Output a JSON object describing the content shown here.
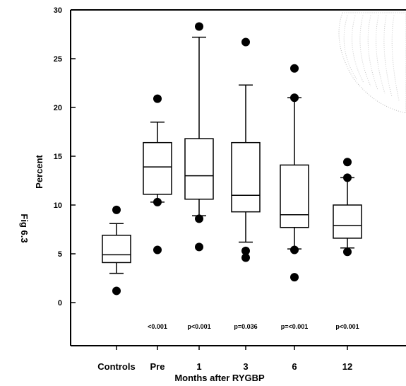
{
  "chart_data": {
    "type": "box",
    "title": "",
    "xlabel": "Months after RYGBP",
    "ylabel": "Percent",
    "side_label": "Fig 6.3",
    "ylim": [
      -5,
      30
    ],
    "yticks": [
      "0",
      "5",
      "10",
      "15",
      "20",
      "25",
      "30"
    ],
    "categories": [
      "Controls",
      "Pre",
      "1",
      "3",
      "6",
      "12"
    ],
    "p_values": [
      "",
      "<0.001",
      "p<0.001",
      "p=0.036",
      "p=<0.001",
      "p<0.001"
    ],
    "boxes": [
      {
        "whisker_low": 3.0,
        "q1": 4.1,
        "median": 4.9,
        "q3": 6.9,
        "whisker_high": 8.1,
        "outliers": [
          9.5,
          1.2
        ]
      },
      {
        "whisker_low": 10.3,
        "q1": 11.1,
        "median": 13.9,
        "q3": 16.4,
        "whisker_high": 18.5,
        "outliers": [
          20.9,
          10.3,
          5.4
        ]
      },
      {
        "whisker_low": 8.9,
        "q1": 10.6,
        "median": 13.0,
        "q3": 16.8,
        "whisker_high": 27.2,
        "outliers": [
          28.3,
          8.6,
          5.7
        ]
      },
      {
        "whisker_low": 6.2,
        "q1": 9.3,
        "median": 11.0,
        "q3": 16.4,
        "whisker_high": 22.3,
        "outliers": [
          26.7,
          5.3,
          4.6
        ]
      },
      {
        "whisker_low": 5.5,
        "q1": 7.7,
        "median": 9.0,
        "q3": 14.1,
        "whisker_high": 21.0,
        "outliers": [
          24.0,
          21.0,
          5.4,
          2.6
        ]
      },
      {
        "whisker_low": 5.6,
        "q1": 6.6,
        "median": 7.9,
        "q3": 10.0,
        "whisker_high": 12.8,
        "outliers": [
          14.4,
          12.8,
          5.2
        ]
      }
    ]
  }
}
